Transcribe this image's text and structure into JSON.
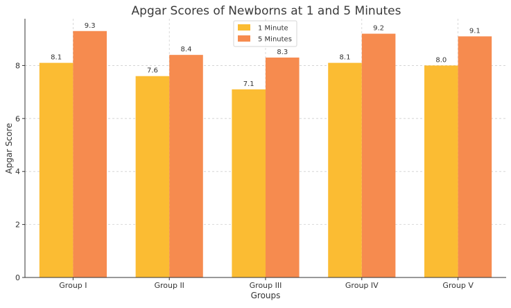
{
  "chart_data": {
    "type": "bar",
    "title": "Apgar Scores of Newborns at 1 and 5 Minutes",
    "xlabel": "Groups",
    "ylabel": "Apgar Score",
    "categories": [
      "Group I",
      "Group II",
      "Group III",
      "Group IV",
      "Group V"
    ],
    "series": [
      {
        "name": "1 Minute",
        "color": "#fbbc33",
        "values": [
          8.1,
          7.6,
          7.1,
          8.1,
          8.0
        ],
        "labels": [
          "8.1",
          "7.6",
          "7.1",
          "8.1",
          "8.0"
        ]
      },
      {
        "name": "5 Minutes",
        "color": "#f68b4f",
        "values": [
          9.3,
          8.4,
          8.3,
          9.2,
          9.1
        ],
        "labels": [
          "9.3",
          "8.4",
          "8.3",
          "9.2",
          "9.1"
        ]
      }
    ],
    "ylim": [
      0,
      9.765
    ],
    "yticks": [
      0,
      2,
      4,
      6,
      8
    ],
    "ytick_labels": [
      "0",
      "2",
      "4",
      "6",
      "8"
    ],
    "grid": true,
    "legend_position": "top-center"
  }
}
